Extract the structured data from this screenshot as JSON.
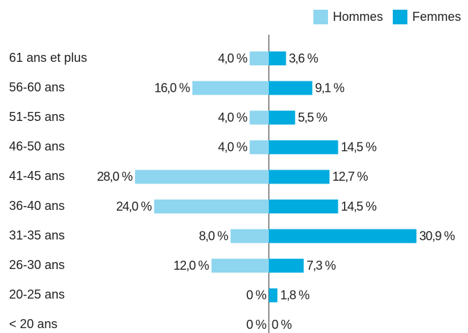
{
  "chart_data": {
    "type": "bar",
    "categories": [
      "61 ans et plus",
      "56-60 ans",
      "51-55 ans",
      "46-50 ans",
      "41-45 ans",
      "36-40 ans",
      "31-35 ans",
      "26-30 ans",
      "20-25 ans",
      "< 20 ans"
    ],
    "series": [
      {
        "name": "Hommes",
        "color": "#8ed5ef",
        "values": [
          4.0,
          16.0,
          4.0,
          4.0,
          28.0,
          24.0,
          8.0,
          12.0,
          0,
          0
        ],
        "value_labels": [
          "4,0 %",
          "16,0 %",
          "4,0 %",
          "4,0 %",
          "28,0 %",
          "24,0 %",
          "8,0 %",
          "12,0 %",
          "0 %",
          "0 %"
        ]
      },
      {
        "name": "Femmes",
        "color": "#00abdf",
        "values": [
          3.6,
          9.1,
          5.5,
          14.5,
          12.7,
          14.5,
          30.9,
          7.3,
          1.8,
          0
        ],
        "value_labels": [
          "3,6 %",
          "9,1 %",
          "5,5 %",
          "14,5 %",
          "12,7 %",
          "14,5 %",
          "30,9 %",
          "7,3 %",
          "1,8 %",
          "0 %"
        ]
      }
    ],
    "legend": "top-right"
  }
}
